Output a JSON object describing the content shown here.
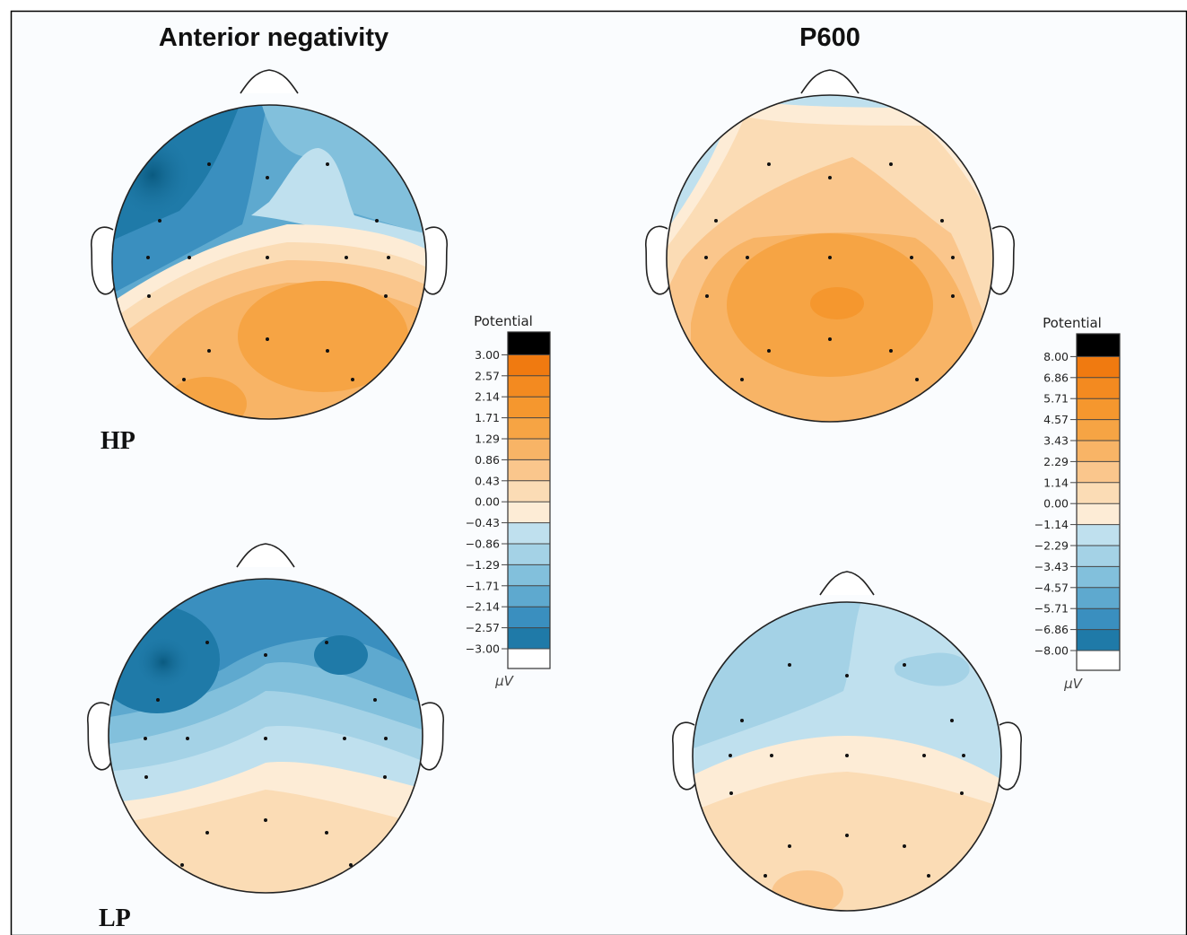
{
  "columns": {
    "left": "Anterior negativity",
    "right": "P600"
  },
  "rows": {
    "top": "HP",
    "bottom": "LP"
  },
  "colorbar_left": {
    "title": "Potential",
    "unit": "μV",
    "ticks": [
      "3.00",
      "2.57",
      "2.14",
      "1.71",
      "1.29",
      "0.86",
      "0.43",
      "0.00",
      "−0.43",
      "−0.86",
      "−1.29",
      "−1.71",
      "−2.14",
      "−2.57",
      "−3.00"
    ]
  },
  "colorbar_right": {
    "title": "Potential",
    "unit": "μV",
    "ticks": [
      "8.00",
      "6.86",
      "5.71",
      "4.57",
      "3.43",
      "2.29",
      "1.14",
      "0.00",
      "−1.14",
      "−2.29",
      "−3.43",
      "−4.57",
      "−5.71",
      "−6.86",
      "−8.00"
    ]
  },
  "colors": {
    "bins": [
      "#f07a10",
      "#f38a20",
      "#f5972e",
      "#f6a444",
      "#f8b466",
      "#fac68c",
      "#fbdcb5",
      "#fdecd6",
      "#bfe0ee",
      "#a4d2e6",
      "#82c0dc",
      "#5ea9cf",
      "#3a8fbf",
      "#1f7aa8",
      "#0d6388"
    ],
    "top_block": "#000000",
    "bottom_block": "#ffffff",
    "outline": "#222222",
    "electrode": "#111111"
  }
}
